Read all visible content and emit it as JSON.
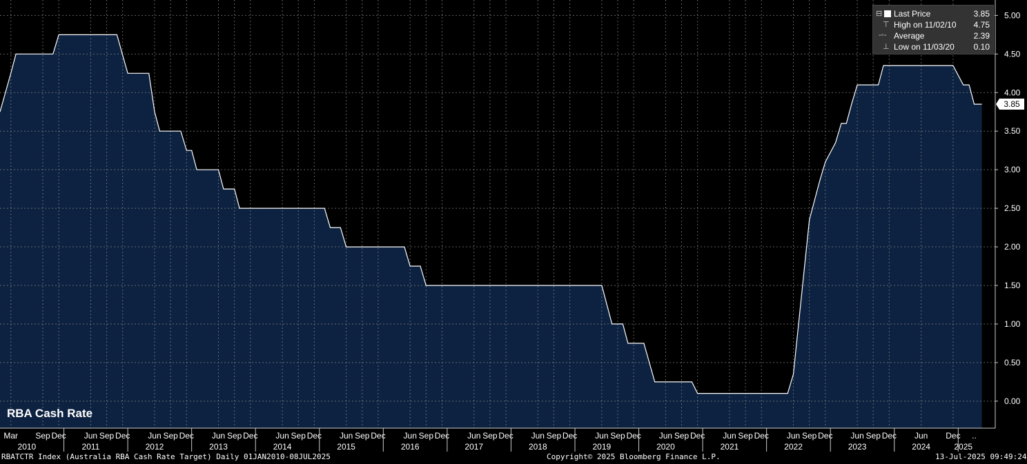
{
  "chart_data": {
    "type": "area",
    "title": "RBA Cash Rate",
    "ylim": [
      -0.35,
      5.2
    ],
    "y_ticks": [
      "5.00",
      "4.50",
      "4.00",
      "3.50",
      "3.00",
      "2.50",
      "2.00",
      "1.50",
      "1.00",
      "0.50",
      "0.00"
    ],
    "x_month_labels": [
      {
        "t": 2010.17,
        "label": "Mar"
      },
      {
        "t": 2010.67,
        "label": "Sep"
      },
      {
        "t": 2010.92,
        "label": "Dec"
      },
      {
        "t": 2011.42,
        "label": "Jun"
      },
      {
        "t": 2011.67,
        "label": "Sep"
      },
      {
        "t": 2011.92,
        "label": "Dec"
      },
      {
        "t": 2012.42,
        "label": "Jun"
      },
      {
        "t": 2012.67,
        "label": "Sep"
      },
      {
        "t": 2012.92,
        "label": "Dec"
      },
      {
        "t": 2013.42,
        "label": "Jun"
      },
      {
        "t": 2013.67,
        "label": "Sep"
      },
      {
        "t": 2013.92,
        "label": "Dec"
      },
      {
        "t": 2014.42,
        "label": "Jun"
      },
      {
        "t": 2014.67,
        "label": "Sep"
      },
      {
        "t": 2014.92,
        "label": "Dec"
      },
      {
        "t": 2015.42,
        "label": "Jun"
      },
      {
        "t": 2015.67,
        "label": "Sep"
      },
      {
        "t": 2015.92,
        "label": "Dec"
      },
      {
        "t": 2016.42,
        "label": "Jun"
      },
      {
        "t": 2016.67,
        "label": "Sep"
      },
      {
        "t": 2016.92,
        "label": "Dec"
      },
      {
        "t": 2017.42,
        "label": "Jun"
      },
      {
        "t": 2017.67,
        "label": "Sep"
      },
      {
        "t": 2017.92,
        "label": "Dec"
      },
      {
        "t": 2018.42,
        "label": "Jun"
      },
      {
        "t": 2018.67,
        "label": "Sep"
      },
      {
        "t": 2018.92,
        "label": "Dec"
      },
      {
        "t": 2019.42,
        "label": "Jun"
      },
      {
        "t": 2019.67,
        "label": "Sep"
      },
      {
        "t": 2019.92,
        "label": "Dec"
      },
      {
        "t": 2020.42,
        "label": "Jun"
      },
      {
        "t": 2020.67,
        "label": "Sep"
      },
      {
        "t": 2020.92,
        "label": "Dec"
      },
      {
        "t": 2021.42,
        "label": "Jun"
      },
      {
        "t": 2021.67,
        "label": "Sep"
      },
      {
        "t": 2021.92,
        "label": "Dec"
      },
      {
        "t": 2022.42,
        "label": "Jun"
      },
      {
        "t": 2022.67,
        "label": "Sep"
      },
      {
        "t": 2022.92,
        "label": "Dec"
      },
      {
        "t": 2023.42,
        "label": "Jun"
      },
      {
        "t": 2023.67,
        "label": "Sep"
      },
      {
        "t": 2023.92,
        "label": "Dec"
      },
      {
        "t": 2024.42,
        "label": "Jun"
      },
      {
        "t": 2024.92,
        "label": "Dec"
      }
    ],
    "x_year_labels": [
      {
        "t": 2010.42,
        "label": "2010"
      },
      {
        "t": 2011.42,
        "label": "2011"
      },
      {
        "t": 2012.42,
        "label": "2012"
      },
      {
        "t": 2013.42,
        "label": "2013"
      },
      {
        "t": 2014.42,
        "label": "2014"
      },
      {
        "t": 2015.42,
        "label": "2015"
      },
      {
        "t": 2016.42,
        "label": "2016"
      },
      {
        "t": 2017.42,
        "label": "2017"
      },
      {
        "t": 2018.42,
        "label": "2018"
      },
      {
        "t": 2019.42,
        "label": "2019"
      },
      {
        "t": 2020.42,
        "label": "2020"
      },
      {
        "t": 2021.42,
        "label": "2021"
      },
      {
        "t": 2022.42,
        "label": "2022"
      },
      {
        "t": 2023.42,
        "label": "2023"
      },
      {
        "t": 2024.42,
        "label": "2024"
      },
      {
        "t": 2025.08,
        "label": "2025"
      }
    ],
    "x_trailing_label": "..",
    "series": [
      {
        "values": [
          [
            2010.0,
            3.75
          ],
          [
            2010.17,
            4.25
          ],
          [
            2010.25,
            4.5
          ],
          [
            2010.83,
            4.5
          ],
          [
            2010.92,
            4.75
          ],
          [
            2011.83,
            4.75
          ],
          [
            2012.0,
            4.25
          ],
          [
            2012.33,
            4.25
          ],
          [
            2012.42,
            3.75
          ],
          [
            2012.5,
            3.5
          ],
          [
            2012.83,
            3.5
          ],
          [
            2012.92,
            3.25
          ],
          [
            2013.0,
            3.25
          ],
          [
            2013.08,
            3.0
          ],
          [
            2013.42,
            3.0
          ],
          [
            2013.5,
            2.75
          ],
          [
            2013.67,
            2.75
          ],
          [
            2013.75,
            2.5
          ],
          [
            2015.08,
            2.5
          ],
          [
            2015.17,
            2.25
          ],
          [
            2015.33,
            2.25
          ],
          [
            2015.42,
            2.0
          ],
          [
            2016.33,
            2.0
          ],
          [
            2016.42,
            1.75
          ],
          [
            2016.58,
            1.75
          ],
          [
            2016.67,
            1.5
          ],
          [
            2019.42,
            1.5
          ],
          [
            2019.58,
            1.0
          ],
          [
            2019.75,
            1.0
          ],
          [
            2019.83,
            0.75
          ],
          [
            2020.08,
            0.75
          ],
          [
            2020.25,
            0.25
          ],
          [
            2020.83,
            0.25
          ],
          [
            2020.92,
            0.1
          ],
          [
            2022.33,
            0.1
          ],
          [
            2022.42,
            0.35
          ],
          [
            2022.67,
            2.35
          ],
          [
            2022.75,
            2.6
          ],
          [
            2022.83,
            2.85
          ],
          [
            2022.92,
            3.1
          ],
          [
            2023.08,
            3.35
          ],
          [
            2023.17,
            3.6
          ],
          [
            2023.25,
            3.6
          ],
          [
            2023.33,
            3.85
          ],
          [
            2023.42,
            4.1
          ],
          [
            2023.75,
            4.1
          ],
          [
            2023.83,
            4.35
          ],
          [
            2024.92,
            4.35
          ],
          [
            2025.08,
            4.1
          ],
          [
            2025.17,
            4.1
          ],
          [
            2025.25,
            3.85
          ],
          [
            2025.37,
            3.85
          ]
        ]
      }
    ],
    "last_value": "3.85",
    "colors": {
      "area": "#0d2240",
      "line": "#ffffff",
      "grid": "#8a8a8a",
      "background": "#000000"
    },
    "grid": true
  },
  "legend": {
    "rows": [
      {
        "glyph": "⊟",
        "label": "Last Price",
        "value": "3.85",
        "box": true
      },
      {
        "glyph": "⊤",
        "label": "High on 11/02/10",
        "value": "4.75"
      },
      {
        "glyph": "-◦-",
        "label": "Average",
        "value": "2.39"
      },
      {
        "glyph": "⊥",
        "label": "Low on 11/03/20",
        "value": "0.10"
      }
    ]
  },
  "footer": {
    "left": "RBATCTR Index (Australia RBA Cash Rate Target)  Daily 01JAN2010-08JUL2025",
    "center": "Copyright© 2025 Bloomberg Finance L.P.",
    "right": "13-Jul-2025 09:49:24"
  }
}
